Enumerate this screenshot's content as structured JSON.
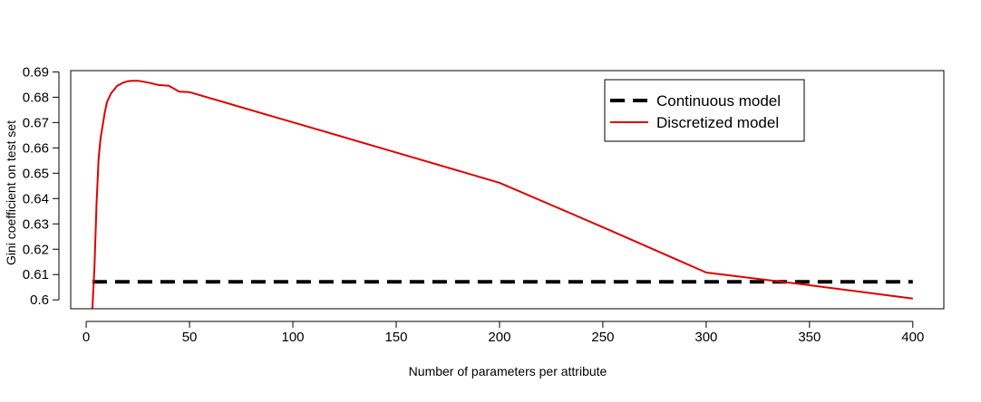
{
  "chart_data": {
    "type": "line",
    "title": "",
    "xlabel": "Number of parameters per attribute",
    "ylabel": "Gini coefficient on test set",
    "xlim": [
      -7.5,
      415
    ],
    "ylim": [
      0.5965,
      0.6905
    ],
    "xticks": [
      0,
      50,
      100,
      150,
      200,
      250,
      300,
      350,
      400
    ],
    "xtick_labels": [
      "0",
      "50",
      "100",
      "150",
      "200",
      "250",
      "300",
      "350",
      "400"
    ],
    "yticks": [
      0.6,
      0.61,
      0.62,
      0.63,
      0.64,
      0.65,
      0.66,
      0.67,
      0.68,
      0.69
    ],
    "ytick_labels": [
      "0.6",
      "0.61",
      "0.62",
      "0.63",
      "0.64",
      "0.65",
      "0.66",
      "0.67",
      "0.68",
      "0.69"
    ],
    "grid": false,
    "legend_position": "top-right",
    "series": [
      {
        "name": "Continuous model",
        "color": "#000000",
        "style": "dashed",
        "x": [
          3,
          400
        ],
        "y": [
          0.6071,
          0.6071
        ]
      },
      {
        "name": "Discretized model",
        "color": "#dd0000",
        "style": "solid",
        "x": [
          3,
          4,
          5,
          6,
          7,
          8,
          9,
          10,
          12,
          15,
          18,
          20,
          22,
          25,
          30,
          35,
          40,
          45,
          50,
          100,
          150,
          200,
          250,
          300,
          350,
          400
        ],
        "y": [
          0.5965,
          0.613,
          0.638,
          0.656,
          0.664,
          0.669,
          0.674,
          0.678,
          0.6815,
          0.6845,
          0.6858,
          0.6863,
          0.6865,
          0.6865,
          0.6858,
          0.6848,
          0.6845,
          0.6822,
          0.682,
          0.6701,
          0.6582,
          0.6462,
          0.6287,
          0.6108,
          0.6058,
          0.6005
        ]
      }
    ]
  }
}
